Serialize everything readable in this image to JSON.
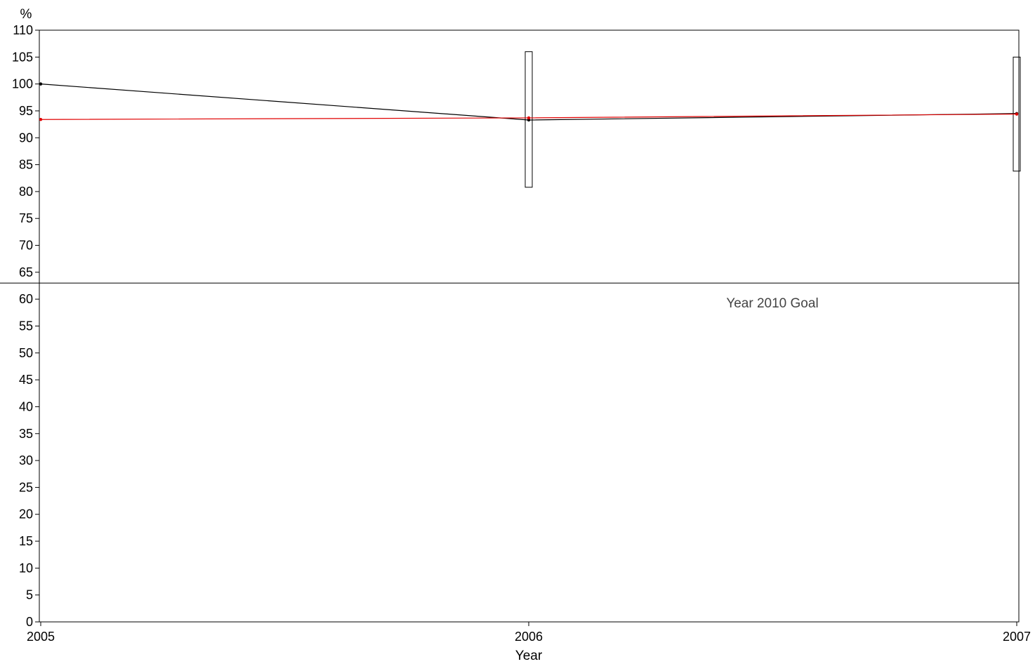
{
  "chart_data": {
    "type": "line",
    "title": "",
    "xlabel": "Year",
    "ylabel": "%",
    "x": [
      2005,
      2006,
      2007
    ],
    "xlim": [
      2005,
      2007
    ],
    "ylim": [
      0,
      110
    ],
    "xticks": [
      "2005",
      "2006",
      "2007"
    ],
    "yticks": [
      0,
      5,
      10,
      15,
      20,
      25,
      30,
      35,
      40,
      45,
      50,
      55,
      60,
      65,
      70,
      75,
      80,
      85,
      90,
      95,
      100,
      105,
      110
    ],
    "grid": false,
    "series": [
      {
        "values": [
          100,
          93.3,
          94.5
        ],
        "color": "#000000"
      },
      {
        "values": [
          93.4,
          93.7,
          94.4
        ],
        "color": "#e00000"
      }
    ],
    "intervals": [
      {
        "x": 2006,
        "low": 80.8,
        "high": 106
      },
      {
        "x": 2007,
        "low": 83.8,
        "high": 105
      }
    ],
    "reference_line": {
      "value": 63,
      "label": "Year 2010 Goal"
    }
  }
}
